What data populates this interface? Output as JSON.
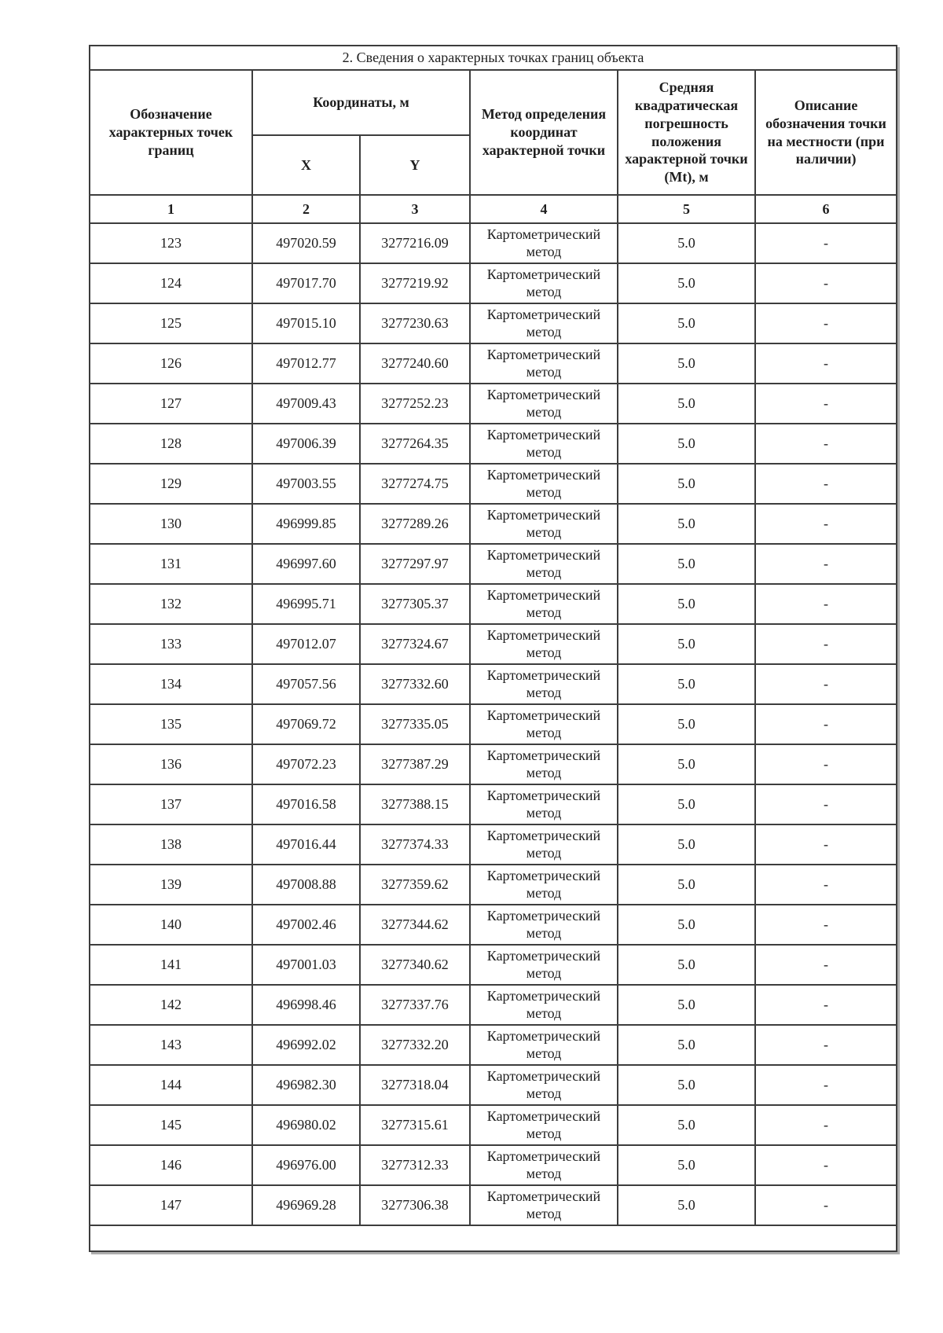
{
  "section_title": "2. Сведения о характерных точках границ объекта",
  "table": {
    "headers": {
      "point_designation": "Обозначение характерных точек границ",
      "coordinates_group": "Координаты, м",
      "x": "X",
      "y": "Y",
      "method": "Метод определения координат характерной точки",
      "mt": "Средняя квадратическая погрешность положения характерной точки (Mt), м",
      "description": "Описание обозначения точки на местности (при наличии)"
    },
    "column_numbers": [
      "1",
      "2",
      "3",
      "4",
      "5",
      "6"
    ],
    "rows": [
      {
        "point": "123",
        "x": "497020.59",
        "y": "3277216.09",
        "method": "Картометрический метод",
        "mt": "5.0",
        "description": "-"
      },
      {
        "point": "124",
        "x": "497017.70",
        "y": "3277219.92",
        "method": "Картометрический метод",
        "mt": "5.0",
        "description": "-"
      },
      {
        "point": "125",
        "x": "497015.10",
        "y": "3277230.63",
        "method": "Картометрический метод",
        "mt": "5.0",
        "description": "-"
      },
      {
        "point": "126",
        "x": "497012.77",
        "y": "3277240.60",
        "method": "Картометрический метод",
        "mt": "5.0",
        "description": "-"
      },
      {
        "point": "127",
        "x": "497009.43",
        "y": "3277252.23",
        "method": "Картометрический метод",
        "mt": "5.0",
        "description": "-"
      },
      {
        "point": "128",
        "x": "497006.39",
        "y": "3277264.35",
        "method": "Картометрический метод",
        "mt": "5.0",
        "description": "-"
      },
      {
        "point": "129",
        "x": "497003.55",
        "y": "3277274.75",
        "method": "Картометрический метод",
        "mt": "5.0",
        "description": "-"
      },
      {
        "point": "130",
        "x": "496999.85",
        "y": "3277289.26",
        "method": "Картометрический метод",
        "mt": "5.0",
        "description": "-"
      },
      {
        "point": "131",
        "x": "496997.60",
        "y": "3277297.97",
        "method": "Картометрический метод",
        "mt": "5.0",
        "description": "-"
      },
      {
        "point": "132",
        "x": "496995.71",
        "y": "3277305.37",
        "method": "Картометрический метод",
        "mt": "5.0",
        "description": "-"
      },
      {
        "point": "133",
        "x": "497012.07",
        "y": "3277324.67",
        "method": "Картометрический метод",
        "mt": "5.0",
        "description": "-"
      },
      {
        "point": "134",
        "x": "497057.56",
        "y": "3277332.60",
        "method": "Картометрический метод",
        "mt": "5.0",
        "description": "-"
      },
      {
        "point": "135",
        "x": "497069.72",
        "y": "3277335.05",
        "method": "Картометрический метод",
        "mt": "5.0",
        "description": "-"
      },
      {
        "point": "136",
        "x": "497072.23",
        "y": "3277387.29",
        "method": "Картометрический метод",
        "mt": "5.0",
        "description": "-"
      },
      {
        "point": "137",
        "x": "497016.58",
        "y": "3277388.15",
        "method": "Картометрический метод",
        "mt": "5.0",
        "description": "-"
      },
      {
        "point": "138",
        "x": "497016.44",
        "y": "3277374.33",
        "method": "Картометрический метод",
        "mt": "5.0",
        "description": "-"
      },
      {
        "point": "139",
        "x": "497008.88",
        "y": "3277359.62",
        "method": "Картометрический метод",
        "mt": "5.0",
        "description": "-"
      },
      {
        "point": "140",
        "x": "497002.46",
        "y": "3277344.62",
        "method": "Картометрический метод",
        "mt": "5.0",
        "description": "-"
      },
      {
        "point": "141",
        "x": "497001.03",
        "y": "3277340.62",
        "method": "Картометрический метод",
        "mt": "5.0",
        "description": "-"
      },
      {
        "point": "142",
        "x": "496998.46",
        "y": "3277337.76",
        "method": "Картометрический метод",
        "mt": "5.0",
        "description": "-"
      },
      {
        "point": "143",
        "x": "496992.02",
        "y": "3277332.20",
        "method": "Картометрический метод",
        "mt": "5.0",
        "description": "-"
      },
      {
        "point": "144",
        "x": "496982.30",
        "y": "3277318.04",
        "method": "Картометрический метод",
        "mt": "5.0",
        "description": "-"
      },
      {
        "point": "145",
        "x": "496980.02",
        "y": "3277315.61",
        "method": "Картометрический метод",
        "mt": "5.0",
        "description": "-"
      },
      {
        "point": "146",
        "x": "496976.00",
        "y": "3277312.33",
        "method": "Картометрический метод",
        "mt": "5.0",
        "description": "-"
      },
      {
        "point": "147",
        "x": "496969.28",
        "y": "3277306.38",
        "method": "Картометрический метод",
        "mt": "5.0",
        "description": "-"
      }
    ]
  }
}
